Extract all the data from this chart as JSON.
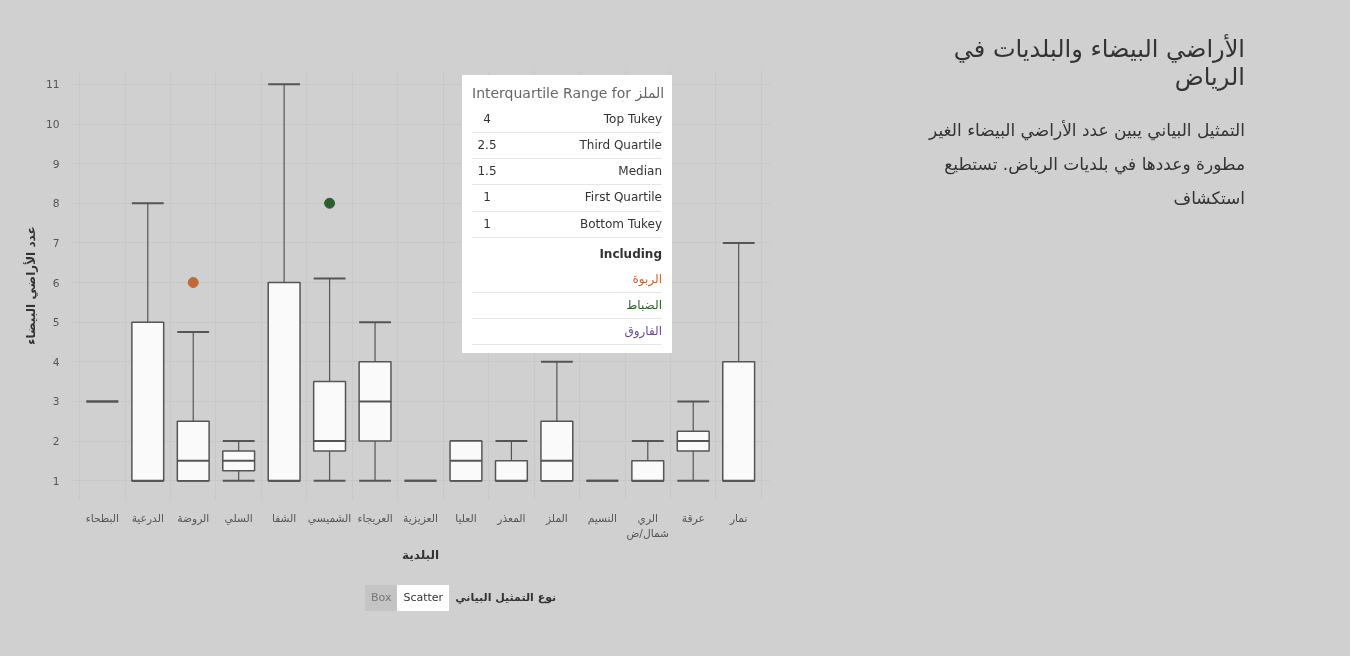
{
  "chart_data": {
    "type": "box",
    "title": "الأراضي البيضاء والبلديات في الرياض",
    "subtitle": "التمثيل البياني يبين عدد الأراضي البيضاء الغير مطورة وعددها في بلديات الرياض. تستطيع استكشاف",
    "xlabel": "البلدية",
    "ylabel": "عدد الأراضي البيضاء",
    "categories": [
      "البطحاء",
      "الدرعية",
      "الروضة",
      "السلي",
      "الشفا",
      "الشميسي",
      "العريجاء",
      "العزيزية",
      "العليا",
      "المعذر",
      "الملز",
      "النسيم",
      "الري\nشمال/ض",
      "عرقة",
      "نمار"
    ],
    "boxes": [
      {
        "low": 3,
        "q1": 3,
        "median": 3,
        "q3": 3,
        "high": 3
      },
      {
        "low": 1,
        "q1": 1,
        "median": 1,
        "q3": 5,
        "high": 8
      },
      {
        "low": 1,
        "q1": 1,
        "median": 1.5,
        "q3": 2.5,
        "high": 4.75
      },
      {
        "low": 1,
        "q1": 1.25,
        "median": 1.5,
        "q3": 1.75,
        "high": 2
      },
      {
        "low": 1,
        "q1": 1,
        "median": 1,
        "q3": 6,
        "high": 11
      },
      {
        "low": 1,
        "q1": 1.75,
        "median": 2,
        "q3": 3.5,
        "high": 6.1
      },
      {
        "low": 1,
        "q1": 2,
        "median": 3,
        "q3": 4,
        "high": 5
      },
      {
        "low": 1,
        "q1": 1,
        "median": 1,
        "q3": 1,
        "high": 1
      },
      {
        "low": 1,
        "q1": 1,
        "median": 1.5,
        "q3": 2,
        "high": 2
      },
      {
        "low": 1,
        "q1": 1,
        "median": 1,
        "q3": 1.5,
        "high": 2
      },
      {
        "low": 1,
        "q1": 1,
        "median": 1.5,
        "q3": 2.5,
        "high": 4
      },
      {
        "low": 1,
        "q1": 1,
        "median": 1,
        "q3": 1,
        "high": 1
      },
      {
        "low": 1,
        "q1": 1,
        "median": 1,
        "q3": 1.5,
        "high": 2
      },
      {
        "low": 1,
        "q1": 1.75,
        "median": 2,
        "q3": 2.25,
        "high": 3
      },
      {
        "low": 1,
        "q1": 1,
        "median": 1,
        "q3": 4,
        "high": 7
      }
    ],
    "series": [
      {
        "type": "scatter",
        "x": [
          "الروضة",
          "الشميسي"
        ],
        "values": [
          6,
          8
        ],
        "colors": [
          "#c0693a",
          "#2e5e2e"
        ]
      }
    ],
    "ylim": [
      0.5,
      11.35
    ],
    "yticks": [
      1,
      2,
      3,
      4,
      5,
      6,
      7,
      8,
      9,
      10,
      11
    ],
    "grid": true,
    "colors": [
      "#555555",
      "#fafafa",
      "#fafafa",
      "#fafafa",
      "#fafafa",
      "#fafafa",
      "#fafafa",
      "#555555",
      "#fafafa",
      "#fafafa",
      "#fafafa",
      "#555555",
      "#fafafa",
      "#fafafa",
      "#fafafa"
    ],
    "marker": "circle",
    "annotations": [
      "Interquartile Range for الملز",
      "Top Tukey",
      "4",
      "Third Quartile",
      "2.5",
      "Median",
      "1.5",
      "First Quartile",
      "1",
      "Bottom Tukey",
      "1",
      "Including",
      "الربوة",
      "الضباط",
      "الفاروق",
      "نوع التمثيل البياني",
      "Scatter",
      "Box"
    ]
  }
}
